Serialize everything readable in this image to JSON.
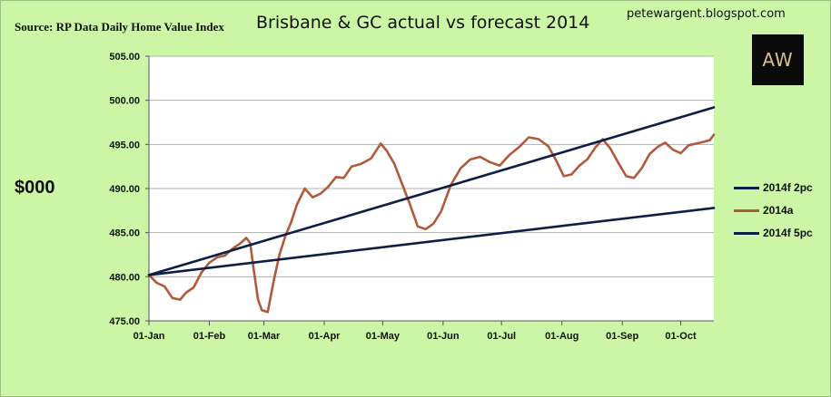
{
  "source": "Source: RP Data Daily Home Value Index",
  "blog": "petewargent.blogspot.com",
  "logo_text": "AW",
  "unit_label": "$000",
  "colors": {
    "background": "#ccf5a6",
    "plot_area": "#ffffff",
    "grid": "#b0b0b0",
    "forecast_2pc": "#0d1f45",
    "actual": "#b05a3c",
    "forecast_5pc": "#0d1f45"
  },
  "chart_data": {
    "type": "line",
    "title": "Brisbane & GC actual vs forecast 2014",
    "xlabel": "",
    "ylabel": "$000",
    "ylim": [
      475,
      505
    ],
    "yticks": [
      "475.00",
      "480.00",
      "485.00",
      "490.00",
      "495.00",
      "500.00",
      "505.00"
    ],
    "xticks": [
      "01-Jan",
      "01-Feb",
      "01-Mar",
      "01-Apr",
      "01-May",
      "01-Jun",
      "01-Jul",
      "01-Aug",
      "01-Sep",
      "01-Oct"
    ],
    "grid": true,
    "legend": "right",
    "series": [
      {
        "name": "2014f 2pc",
        "x": [
          "01-Jan",
          "18-Oct"
        ],
        "values": [
          480.2,
          487.8
        ]
      },
      {
        "name": "2014a",
        "x": [
          "01-Jan",
          "05-Jan",
          "09-Jan",
          "13-Jan",
          "17-Jan",
          "20-Jan",
          "24-Jan",
          "28-Jan",
          "01-Feb",
          "05-Feb",
          "09-Feb",
          "13-Feb",
          "17-Feb",
          "20-Feb",
          "22-Feb",
          "24-Feb",
          "26-Feb",
          "28-Feb",
          "03-Mar",
          "06-Mar",
          "09-Mar",
          "12-Mar",
          "15-Mar",
          "18-Mar",
          "22-Mar",
          "26-Mar",
          "30-Mar",
          "03-Apr",
          "07-Apr",
          "11-Apr",
          "15-Apr",
          "20-Apr",
          "25-Apr",
          "30-Apr",
          "03-May",
          "07-May",
          "11-May",
          "15-May",
          "19-May",
          "23-May",
          "27-May",
          "31-May",
          "05-Jun",
          "10-Jun",
          "15-Jun",
          "20-Jun",
          "25-Jun",
          "30-Jun",
          "05-Jul",
          "10-Jul",
          "15-Jul",
          "20-Jul",
          "25-Jul",
          "29-Jul",
          "02-Aug",
          "06-Aug",
          "10-Aug",
          "14-Aug",
          "18-Aug",
          "22-Aug",
          "26-Aug",
          "30-Aug",
          "03-Sep",
          "07-Sep",
          "11-Sep",
          "15-Sep",
          "19-Sep",
          "23-Sep",
          "27-Sep",
          "01-Oct",
          "05-Oct",
          "09-Oct",
          "13-Oct",
          "16-Oct",
          "18-Oct"
        ],
        "values": [
          480.2,
          479.3,
          478.9,
          477.6,
          477.4,
          478.2,
          478.8,
          480.5,
          481.6,
          482.2,
          482.4,
          483.2,
          483.8,
          484.4,
          483.8,
          480.5,
          477.4,
          476.2,
          476.0,
          479.5,
          482.5,
          484.6,
          486.2,
          488.2,
          490.0,
          489.0,
          489.4,
          490.2,
          491.3,
          491.2,
          492.5,
          492.8,
          493.4,
          495.1,
          494.3,
          492.8,
          490.5,
          488.2,
          485.7,
          485.4,
          486.0,
          487.4,
          490.4,
          492.3,
          493.3,
          493.6,
          493.0,
          492.6,
          493.8,
          494.7,
          495.8,
          495.6,
          494.8,
          493.2,
          491.4,
          491.6,
          492.6,
          493.3,
          494.6,
          495.6,
          494.5,
          492.9,
          491.4,
          491.2,
          492.3,
          493.9,
          494.7,
          495.2,
          494.4,
          494.0,
          494.9,
          495.1,
          495.3,
          495.5,
          496.1
        ]
      },
      {
        "name": "2014f 5pc",
        "x": [
          "01-Jan",
          "18-Oct"
        ],
        "values": [
          480.2,
          499.2
        ]
      }
    ]
  }
}
